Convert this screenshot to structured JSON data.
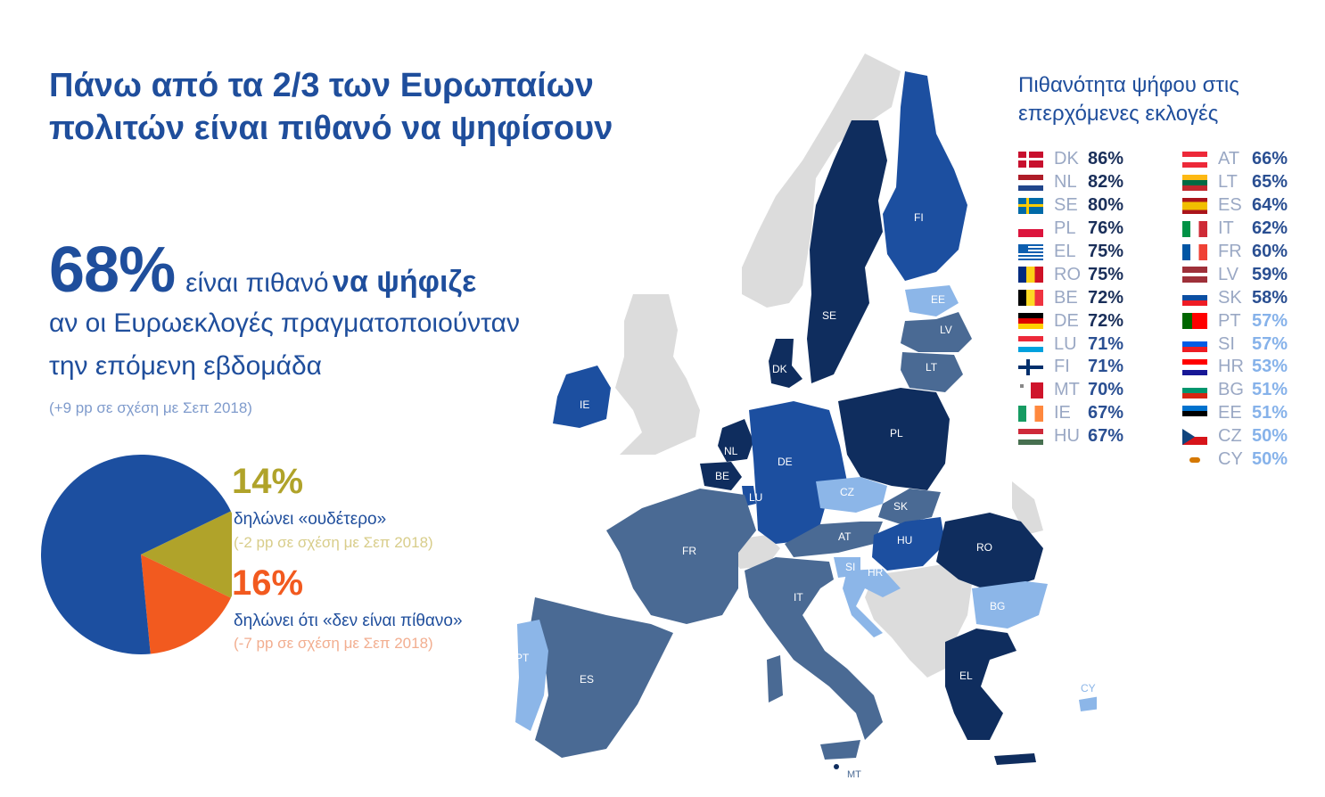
{
  "title": "Πάνω από τα 2/3 των Ευρωπαίων πολιτών είναι πιθανό να ψηφίσουν",
  "headline": {
    "pct": "68%",
    "text_a": "είναι πιθανό",
    "text_b": "να ψήφιζε",
    "line2": "αν οι Ευρωεκλογές πραγματοποιούνταν",
    "line3": "την επόμενη εβδομάδα",
    "note": "(+9 pp σε σχέση με Σεπ 2018)"
  },
  "pie": {
    "colors": {
      "likely": "#1c4fa0",
      "neutral": "#b0a32a",
      "unlikely": "#f25a1f"
    },
    "neutral": {
      "pct": "14%",
      "desc": "δηλώνει «ουδέτερο»",
      "note": "(-2 pp σε σχέση με Σεπ 2018)"
    },
    "unlikely": {
      "pct": "16%",
      "desc": "δηλώνει ότι «δεν είναι πίθανο»",
      "note": "(-7 pp σε σχέση με Σεπ 2018)"
    }
  },
  "slices": [
    {
      "key": "likely",
      "value": 68
    },
    {
      "key": "neutral",
      "value": 14
    },
    {
      "key": "unlikely",
      "value": 16
    }
  ],
  "map_colors": {
    "tier_80plus": "#0f2d5e",
    "tier_70_79": "#0f2d5e",
    "tier_65_71": "#1c4fa0",
    "tier_58_64": "#4a6a94",
    "tier_50_57": "#8cb6e8",
    "non_eu": "#dcdcdc"
  },
  "countries": {
    "FI": "FI",
    "SE": "SE",
    "EE": "EE",
    "LV": "LV",
    "LT": "LT",
    "DK": "DK",
    "IE": "IE",
    "NL": "NL",
    "BE": "BE",
    "LU": "LU",
    "DE": "DE",
    "PL": "PL",
    "CZ": "CZ",
    "SK": "SK",
    "AT": "AT",
    "HU": "HU",
    "RO": "RO",
    "FR": "FR",
    "SI": "SI",
    "HR": "HR",
    "IT": "IT",
    "BG": "BG",
    "EL": "EL",
    "PT": "PT",
    "ES": "ES",
    "CY": "CY",
    "MT": "MT"
  },
  "legend": {
    "title_line1": "Πιθανότητα ψήφου στις",
    "title_line2": "επερχόμενες εκλογές",
    "left": [
      {
        "code": "DK",
        "value": "86%"
      },
      {
        "code": "NL",
        "value": "82%"
      },
      {
        "code": "SE",
        "value": "80%"
      },
      {
        "code": "PL",
        "value": "76%"
      },
      {
        "code": "EL",
        "value": "75%"
      },
      {
        "code": "RO",
        "value": "75%"
      },
      {
        "code": "BE",
        "value": "72%"
      },
      {
        "code": "DE",
        "value": "72%"
      },
      {
        "code": "LU",
        "value": "71%"
      },
      {
        "code": "FI",
        "value": "71%"
      },
      {
        "code": "MT",
        "value": "70%"
      },
      {
        "code": "IE",
        "value": "67%"
      },
      {
        "code": "HU",
        "value": "67%"
      }
    ],
    "right": [
      {
        "code": "AT",
        "value": "66%"
      },
      {
        "code": "LT",
        "value": "65%"
      },
      {
        "code": "ES",
        "value": "64%"
      },
      {
        "code": "IT",
        "value": "62%"
      },
      {
        "code": "FR",
        "value": "60%"
      },
      {
        "code": "LV",
        "value": "59%"
      },
      {
        "code": "SK",
        "value": "58%"
      },
      {
        "code": "PT",
        "value": "57%"
      },
      {
        "code": "SI",
        "value": "57%"
      },
      {
        "code": "HR",
        "value": "53%"
      },
      {
        "code": "BG",
        "value": "51%"
      },
      {
        "code": "EE",
        "value": "51%"
      },
      {
        "code": "CZ",
        "value": "50%"
      },
      {
        "code": "CY",
        "value": "50%"
      }
    ]
  },
  "value_colors": {
    "dark": "#1a2f5a",
    "mid": "#2a4f92",
    "light": "#86b2ea"
  }
}
